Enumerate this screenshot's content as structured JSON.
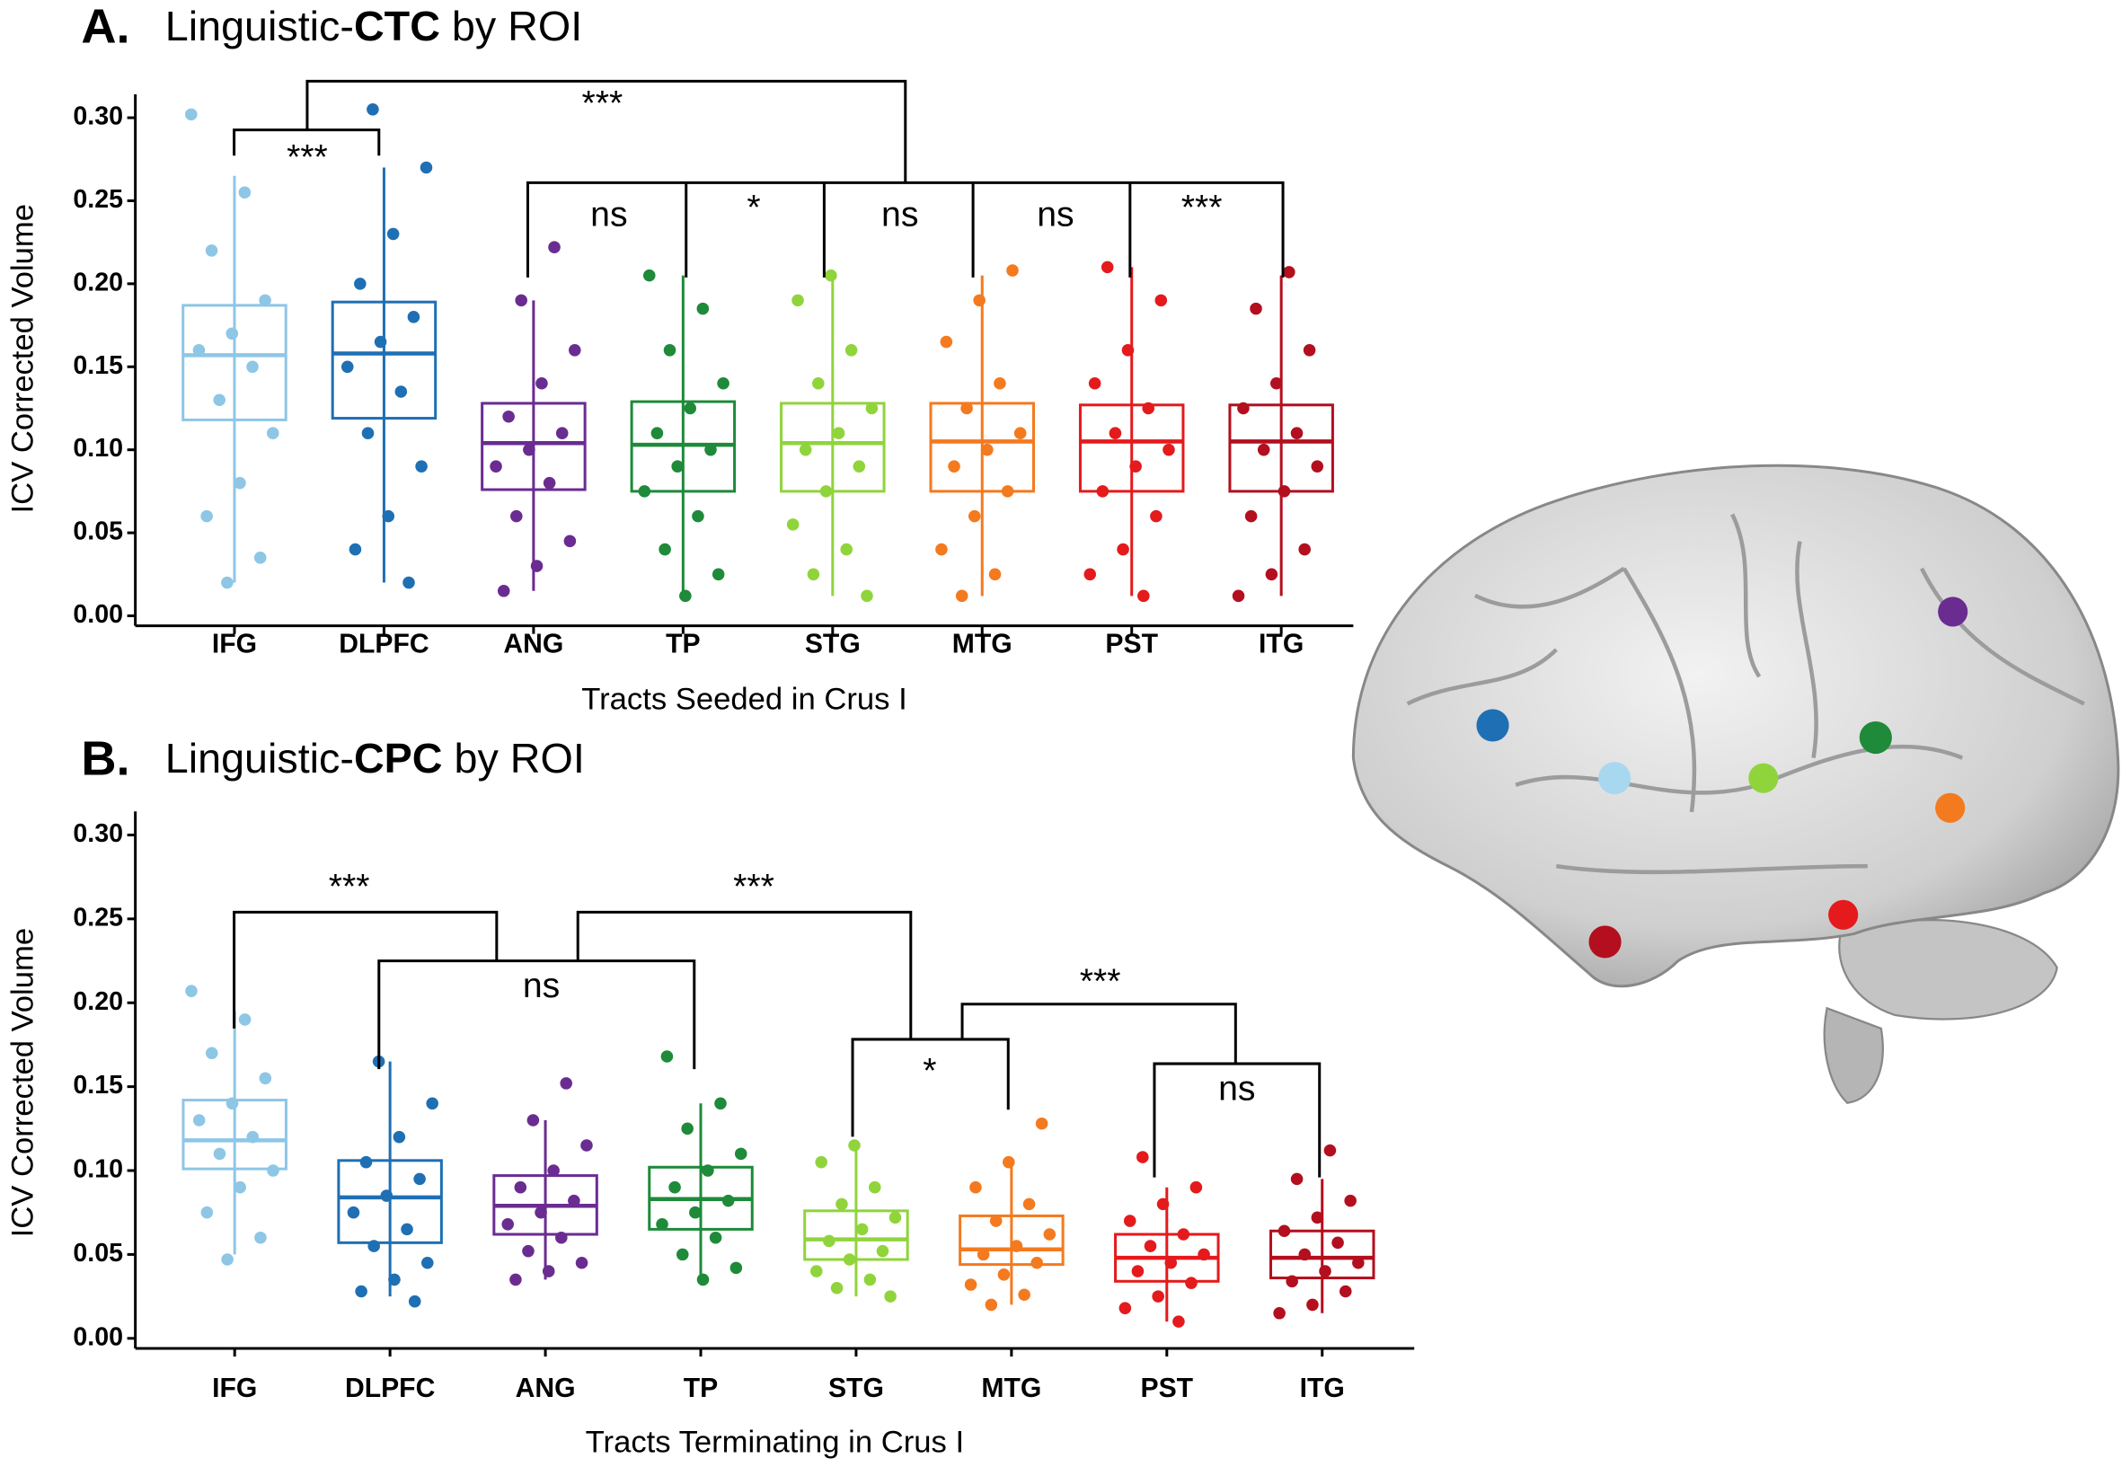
{
  "chart_data": [
    {
      "type": "box",
      "panel_label": "A.",
      "title_parts": [
        "Linguistic-",
        "CTC",
        " by ROI"
      ],
      "ylabel": "ICV Corrected Volume",
      "xlabel": "Tracts Seeded in Crus I",
      "categories": [
        "IFG",
        "DLPFC",
        "ANG",
        "TP",
        "STG",
        "MTG",
        "PST",
        "ITG"
      ],
      "colors": [
        "#8ec6e6",
        "#1f6fb4",
        "#6a2c91",
        "#1e8a3a",
        "#90d43c",
        "#f47a1f",
        "#e41a1c",
        "#b30f1e"
      ],
      "low": [
        0.02,
        0.02,
        0.015,
        0.012,
        0.012,
        0.012,
        0.012,
        0.012
      ],
      "q1": [
        0.118,
        0.119,
        0.076,
        0.075,
        0.075,
        0.075,
        0.075,
        0.075
      ],
      "median": [
        0.157,
        0.158,
        0.104,
        0.103,
        0.104,
        0.105,
        0.105,
        0.105
      ],
      "q3": [
        0.187,
        0.189,
        0.128,
        0.129,
        0.128,
        0.128,
        0.127,
        0.127
      ],
      "high": [
        0.265,
        0.27,
        0.19,
        0.205,
        0.205,
        0.205,
        0.21,
        0.205
      ],
      "points": [
        [
          0.302,
          0.255,
          0.22,
          0.19,
          0.17,
          0.16,
          0.15,
          0.13,
          0.11,
          0.08,
          0.06,
          0.035,
          0.02
        ],
        [
          0.305,
          0.27,
          0.23,
          0.2,
          0.18,
          0.165,
          0.15,
          0.135,
          0.11,
          0.09,
          0.06,
          0.04,
          0.02
        ],
        [
          0.222,
          0.19,
          0.16,
          0.14,
          0.12,
          0.11,
          0.1,
          0.09,
          0.08,
          0.06,
          0.045,
          0.03,
          0.015
        ],
        [
          0.205,
          0.185,
          0.16,
          0.14,
          0.125,
          0.11,
          0.1,
          0.09,
          0.075,
          0.06,
          0.04,
          0.025,
          0.012
        ],
        [
          0.205,
          0.19,
          0.16,
          0.14,
          0.125,
          0.11,
          0.1,
          0.09,
          0.075,
          0.055,
          0.04,
          0.025,
          0.012
        ],
        [
          0.208,
          0.19,
          0.165,
          0.14,
          0.125,
          0.11,
          0.1,
          0.09,
          0.075,
          0.06,
          0.04,
          0.025,
          0.012
        ],
        [
          0.21,
          0.19,
          0.16,
          0.14,
          0.125,
          0.11,
          0.1,
          0.09,
          0.075,
          0.06,
          0.04,
          0.025,
          0.012
        ],
        [
          0.207,
          0.185,
          0.16,
          0.14,
          0.125,
          0.11,
          0.1,
          0.09,
          0.075,
          0.06,
          0.04,
          0.025,
          0.012
        ]
      ],
      "ylim": [
        -0.006,
        0.31
      ],
      "yticks": [
        {
          "value": 0,
          "label": "0.00"
        },
        {
          "value": 0.05,
          "label": "0.05"
        },
        {
          "value": 0.1,
          "label": "0.10"
        },
        {
          "value": 0.15,
          "label": "0.15"
        },
        {
          "value": 0.2,
          "label": "0.20"
        },
        {
          "value": 0.25,
          "label": "0.25"
        },
        {
          "value": 0.3,
          "label": "0.30"
        }
      ],
      "annotations": [
        "***",
        "***",
        "ns",
        "*",
        "ns",
        "ns",
        "***"
      ]
    },
    {
      "type": "box",
      "panel_label": "B.",
      "title_parts": [
        "Linguistic-",
        "CPC",
        " by ROI"
      ],
      "ylabel": "ICV Corrected Volume",
      "xlabel": "Tracts Terminating in Crus I",
      "categories": [
        "IFG",
        "DLPFC",
        "ANG",
        "TP",
        "STG",
        "MTG",
        "PST",
        "ITG"
      ],
      "colors": [
        "#8ec6e6",
        "#1f6fb4",
        "#6a2c91",
        "#1e8a3a",
        "#90d43c",
        "#f47a1f",
        "#e41a1c",
        "#b30f1e"
      ],
      "low": [
        0.05,
        0.025,
        0.035,
        0.035,
        0.025,
        0.02,
        0.01,
        0.015
      ],
      "q1": [
        0.101,
        0.057,
        0.062,
        0.065,
        0.047,
        0.044,
        0.034,
        0.036
      ],
      "median": [
        0.118,
        0.084,
        0.079,
        0.083,
        0.059,
        0.053,
        0.048,
        0.048
      ],
      "q3": [
        0.142,
        0.106,
        0.097,
        0.102,
        0.076,
        0.073,
        0.062,
        0.064
      ],
      "high": [
        0.195,
        0.165,
        0.13,
        0.14,
        0.115,
        0.105,
        0.09,
        0.095
      ],
      "points": [
        [
          0.207,
          0.19,
          0.17,
          0.155,
          0.14,
          0.13,
          0.12,
          0.11,
          0.1,
          0.09,
          0.075,
          0.06,
          0.047
        ],
        [
          0.165,
          0.14,
          0.12,
          0.105,
          0.095,
          0.085,
          0.075,
          0.065,
          0.055,
          0.045,
          0.035,
          0.028,
          0.022
        ],
        [
          0.152,
          0.13,
          0.115,
          0.1,
          0.09,
          0.082,
          0.075,
          0.068,
          0.06,
          0.052,
          0.045,
          0.04,
          0.035
        ],
        [
          0.168,
          0.14,
          0.125,
          0.11,
          0.1,
          0.09,
          0.082,
          0.075,
          0.068,
          0.06,
          0.05,
          0.042,
          0.035
        ],
        [
          0.115,
          0.105,
          0.09,
          0.08,
          0.072,
          0.065,
          0.058,
          0.052,
          0.047,
          0.04,
          0.035,
          0.03,
          0.025
        ],
        [
          0.128,
          0.105,
          0.09,
          0.08,
          0.07,
          0.062,
          0.055,
          0.05,
          0.045,
          0.038,
          0.032,
          0.026,
          0.02
        ],
        [
          0.108,
          0.09,
          0.08,
          0.07,
          0.062,
          0.055,
          0.05,
          0.045,
          0.04,
          0.033,
          0.025,
          0.018,
          0.01
        ],
        [
          0.112,
          0.095,
          0.082,
          0.072,
          0.064,
          0.057,
          0.05,
          0.045,
          0.04,
          0.034,
          0.028,
          0.02,
          0.015
        ]
      ],
      "ylim": [
        -0.006,
        0.31
      ],
      "yticks": [
        {
          "value": 0,
          "label": "0.00"
        },
        {
          "value": 0.05,
          "label": "0.05"
        },
        {
          "value": 0.1,
          "label": "0.10"
        },
        {
          "value": 0.15,
          "label": "0.15"
        },
        {
          "value": 0.2,
          "label": "0.20"
        },
        {
          "value": 0.25,
          "label": "0.25"
        },
        {
          "value": 0.3,
          "label": "0.30"
        }
      ],
      "annotations": [
        "***",
        "ns",
        "***",
        "*",
        "***",
        "ns"
      ]
    }
  ]
}
